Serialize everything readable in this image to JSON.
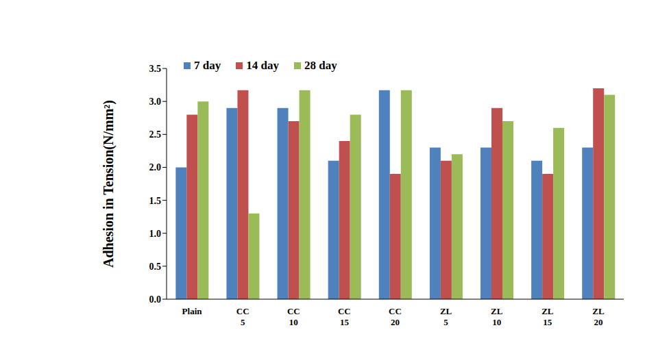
{
  "chart_data": {
    "type": "bar",
    "y_label": "Adhesion in Tension(N/mm²)",
    "categories": [
      "Plain",
      "CC 5",
      "CC 10",
      "CC 15",
      "CC 20",
      "ZL 5",
      "ZL 10",
      "ZL 15",
      "ZL 20"
    ],
    "series": [
      {
        "name": "7 day",
        "color": "#4f81bd",
        "values": [
          2.0,
          2.9,
          2.9,
          2.1,
          3.17,
          2.3,
          2.3,
          2.1,
          2.3
        ]
      },
      {
        "name": "14 day",
        "color": "#c0504d",
        "values": [
          2.8,
          3.17,
          2.7,
          2.4,
          1.9,
          2.1,
          2.9,
          1.9,
          3.2
        ]
      },
      {
        "name": "28 day",
        "color": "#9bbb59",
        "values": [
          3.0,
          1.3,
          3.17,
          2.8,
          3.17,
          2.2,
          2.7,
          2.6,
          3.1
        ]
      }
    ],
    "ylim": [
      0,
      3.5
    ],
    "yticks": [
      {
        "value": 0,
        "label": "0.0"
      },
      0.5,
      {
        "value": 1,
        "label": "1.0"
      },
      1.5,
      {
        "value": 2,
        "label": "2.0"
      },
      2.5,
      {
        "value": 3,
        "label": "3.0"
      },
      3.5
    ],
    "grid": false,
    "legend": "top"
  }
}
